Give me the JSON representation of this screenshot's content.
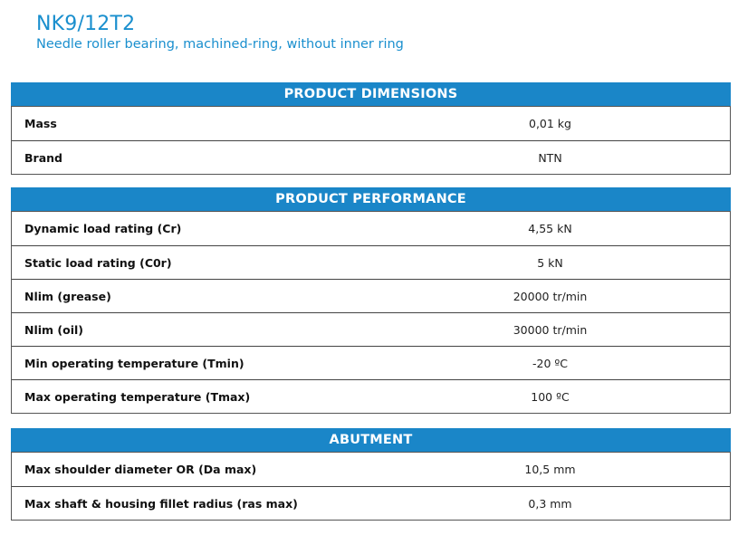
{
  "header": {
    "title": "NK9/12T2",
    "subtitle": "Needle roller bearing, machined-ring, without inner ring"
  },
  "sections": [
    {
      "title": "PRODUCT DIMENSIONS",
      "rows": [
        {
          "label": "Mass",
          "value": "0,01 kg"
        },
        {
          "label": "Brand",
          "value": "NTN"
        }
      ]
    },
    {
      "title": "PRODUCT PERFORMANCE",
      "rows": [
        {
          "label": "Dynamic load rating (Cr)",
          "value": "4,55 kN"
        },
        {
          "label": "Static load rating (C0r)",
          "value": "5 kN"
        },
        {
          "label": "Nlim (grease)",
          "value": "20000 tr/min"
        },
        {
          "label": "Nlim (oil)",
          "value": "30000 tr/min"
        },
        {
          "label": "Min operating temperature (Tmin)",
          "value": "-20 ºC"
        },
        {
          "label": "Max operating temperature (Tmax)",
          "value": "100 ºC"
        }
      ]
    },
    {
      "title": "ABUTMENT",
      "rows": [
        {
          "label": "Max shoulder diameter OR (Da max)",
          "value": "10,5 mm"
        },
        {
          "label": "Max shaft & housing fillet radius (ras max)",
          "value": "0,3 mm"
        }
      ]
    }
  ],
  "colors": {
    "accent": "#1a86c8",
    "title": "#1a8fce"
  }
}
